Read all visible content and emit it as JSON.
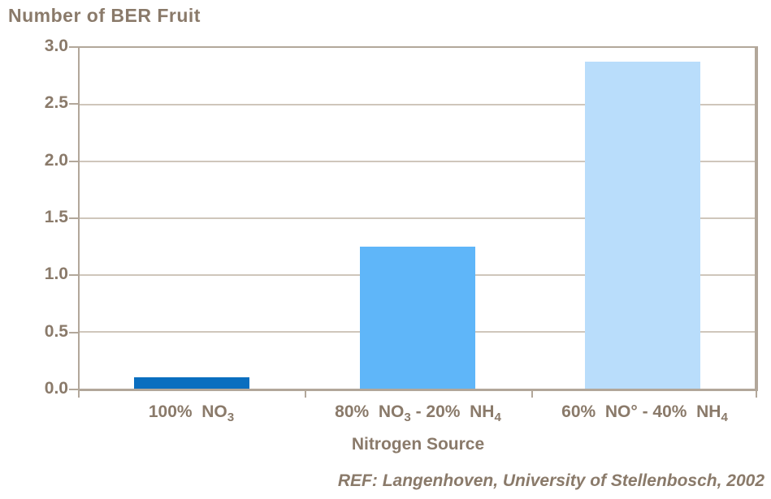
{
  "palette": {
    "text": "#8a7a6a",
    "axis": "#b2a79a",
    "gridline": "#cfc6bb",
    "background": "#ffffff",
    "bar_colors": [
      "#0a6ebf",
      "#5fb6f9",
      "#b9ddfb"
    ]
  },
  "chart_data": {
    "type": "bar",
    "title": "Number of BER Fruit",
    "xlabel": "Nitrogen Source",
    "ylabel": "",
    "ylim": [
      0,
      3
    ],
    "ytick_step": 0.5,
    "ytick_labels": [
      "3.0",
      "2.5",
      "2.0",
      "1.5",
      "1.0",
      "0.5",
      "0.0"
    ],
    "grid": true,
    "legend": false,
    "categories": [
      {
        "plain": "100%  NO3",
        "segments": [
          {
            "t": "100%  NO"
          },
          {
            "t": "3",
            "sub": true
          }
        ]
      },
      {
        "plain": "80%  NO3 - 20%  NH4",
        "segments": [
          {
            "t": "80%  NO"
          },
          {
            "t": "3",
            "sub": true
          },
          {
            "t": " - 20%  NH"
          },
          {
            "t": "4",
            "sub": true
          }
        ]
      },
      {
        "plain": "60%  NO° - 40%  NH4",
        "segments": [
          {
            "t": "60%  NO° - 40%  NH"
          },
          {
            "t": "4",
            "sub": true
          }
        ]
      }
    ],
    "values": [
      0.1,
      1.25,
      2.88
    ],
    "footer": "REF: Langenhoven, University of Stellenbosch, 2002"
  }
}
